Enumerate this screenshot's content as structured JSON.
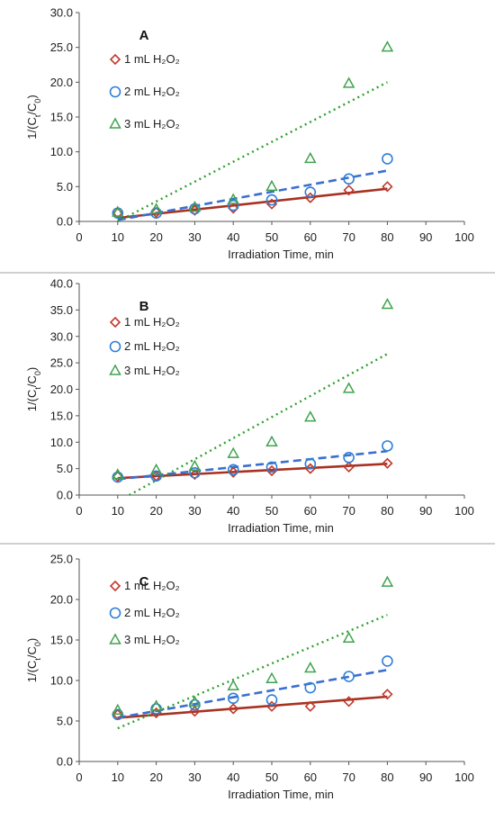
{
  "chart_data": [
    {
      "type": "scatter",
      "panel_label": "A",
      "xlabel": "Irradiation Time, min",
      "ylabel": "1/(C<sub>t</sub>/C<sub>0</sub>)",
      "xlim": [
        0,
        100
      ],
      "ylim": [
        0,
        30
      ],
      "x_ticks": [
        "0",
        "10",
        "20",
        "30",
        "40",
        "50",
        "60",
        "70",
        "80",
        "90",
        "100"
      ],
      "y_ticks": [
        "0.0",
        "5.0",
        "10.0",
        "15.0",
        "20.0",
        "25.0",
        "30.0"
      ],
      "grid": false,
      "legend_placement": "top-left",
      "series": [
        {
          "name": "1 mL H₂O₂",
          "marker": "diamond",
          "color": "#c0392b",
          "line_color": "#a83222",
          "line_style": "solid",
          "x": [
            10,
            20,
            30,
            40,
            50,
            60,
            70,
            80
          ],
          "y": [
            1.2,
            1.3,
            1.6,
            1.9,
            2.5,
            3.4,
            4.5,
            5.0
          ],
          "trend": [
            [
              10,
              0.5
            ],
            [
              80,
              4.7
            ]
          ]
        },
        {
          "name": "2 mL H₂O₂",
          "marker": "circle",
          "color": "#2f7fd6",
          "line_color": "#3a6fd0",
          "line_style": "dashed",
          "x": [
            10,
            20,
            30,
            40,
            50,
            60,
            70,
            80
          ],
          "y": [
            1.2,
            1.2,
            1.8,
            2.3,
            3.1,
            4.2,
            6.1,
            9.0
          ],
          "trend": [
            [
              10,
              0.2
            ],
            [
              80,
              7.3
            ]
          ]
        },
        {
          "name": "3 mL H₂O₂",
          "marker": "triangle",
          "color": "#3fa34d",
          "line_color": "#2ea02e",
          "line_style": "dotted",
          "x": [
            10,
            20,
            30,
            40,
            50,
            60,
            70,
            80
          ],
          "y": [
            1.3,
            1.7,
            2.0,
            3.1,
            5.0,
            9.0,
            19.8,
            25.0
          ],
          "trend": [
            [
              10,
              0.0
            ],
            [
              80,
              20.0
            ]
          ]
        }
      ]
    },
    {
      "type": "scatter",
      "panel_label": "B",
      "xlabel": "Irradiation Time, min",
      "ylabel": "1/(C<sub>t</sub>/C<sub>0</sub>)",
      "xlim": [
        0,
        100
      ],
      "ylim": [
        0,
        40
      ],
      "x_ticks": [
        "0",
        "10",
        "20",
        "30",
        "40",
        "50",
        "60",
        "70",
        "80",
        "90",
        "100"
      ],
      "y_ticks": [
        "0.0",
        "5.0",
        "10.0",
        "15.0",
        "20.0",
        "25.0",
        "30.0",
        "35.0",
        "40.0"
      ],
      "grid": false,
      "legend_placement": "top-left",
      "series": [
        {
          "name": "1 mL H₂O₂",
          "marker": "diamond",
          "color": "#c0392b",
          "line_color": "#a83222",
          "line_style": "solid",
          "x": [
            10,
            20,
            30,
            40,
            50,
            60,
            70,
            80
          ],
          "y": [
            3.5,
            3.6,
            3.9,
            4.3,
            4.6,
            5.0,
            5.3,
            6.0
          ],
          "trend": [
            [
              10,
              3.2
            ],
            [
              80,
              5.9
            ]
          ]
        },
        {
          "name": "2 mL H₂O₂",
          "marker": "circle",
          "color": "#2f7fd6",
          "line_color": "#3a6fd0",
          "line_style": "dashed",
          "x": [
            10,
            20,
            30,
            40,
            50,
            60,
            70,
            80
          ],
          "y": [
            3.4,
            3.6,
            4.2,
            4.8,
            5.3,
            5.9,
            7.1,
            9.3
          ],
          "trend": [
            [
              10,
              3.0
            ],
            [
              80,
              8.3
            ]
          ]
        },
        {
          "name": "3 mL H₂O₂",
          "marker": "triangle",
          "color": "#3fa34d",
          "line_color": "#2ea02e",
          "line_style": "dotted",
          "x": [
            10,
            20,
            30,
            40,
            50,
            60,
            70,
            80
          ],
          "y": [
            3.8,
            4.7,
            5.4,
            7.8,
            10.0,
            14.7,
            20.1,
            36.0
          ],
          "trend": [
            [
              13,
              0.0
            ],
            [
              80,
              26.7
            ]
          ]
        }
      ]
    },
    {
      "type": "scatter",
      "panel_label": "C",
      "xlabel": "Irradiation Time, min",
      "ylabel": "1/(C<sub>t</sub>/C<sub>0</sub>)",
      "xlim": [
        0,
        100
      ],
      "ylim": [
        0,
        25
      ],
      "x_ticks": [
        "0",
        "10",
        "20",
        "30",
        "40",
        "50",
        "60",
        "70",
        "80",
        "90",
        "100"
      ],
      "y_ticks": [
        "0.0",
        "5.0",
        "10.0",
        "15.0",
        "20.0",
        "25.0"
      ],
      "grid": false,
      "legend_placement": "top-left",
      "series": [
        {
          "name": "1 mL H₂O₂",
          "marker": "diamond",
          "color": "#c0392b",
          "line_color": "#a83222",
          "line_style": "solid",
          "x": [
            10,
            20,
            30,
            40,
            50,
            60,
            70,
            80
          ],
          "y": [
            5.8,
            6.0,
            6.2,
            6.5,
            6.8,
            6.8,
            7.4,
            8.3
          ],
          "trend": [
            [
              10,
              5.4
            ],
            [
              80,
              8.0
            ]
          ]
        },
        {
          "name": "2 mL H₂O₂",
          "marker": "circle",
          "color": "#2f7fd6",
          "line_color": "#3a6fd0",
          "line_style": "dashed",
          "x": [
            10,
            20,
            30,
            40,
            50,
            60,
            70,
            80
          ],
          "y": [
            5.8,
            6.5,
            7.0,
            7.8,
            7.6,
            9.1,
            10.5,
            12.4
          ],
          "trend": [
            [
              10,
              5.4
            ],
            [
              80,
              11.3
            ]
          ]
        },
        {
          "name": "3 mL H₂O₂",
          "marker": "triangle",
          "color": "#3fa34d",
          "line_color": "#2ea02e",
          "line_style": "dotted",
          "x": [
            10,
            20,
            30,
            40,
            50,
            60,
            70,
            80
          ],
          "y": [
            6.3,
            6.8,
            7.3,
            9.3,
            10.2,
            11.5,
            15.2,
            22.1
          ],
          "trend": [
            [
              10,
              4.1
            ],
            [
              80,
              18.1
            ]
          ]
        }
      ]
    }
  ]
}
